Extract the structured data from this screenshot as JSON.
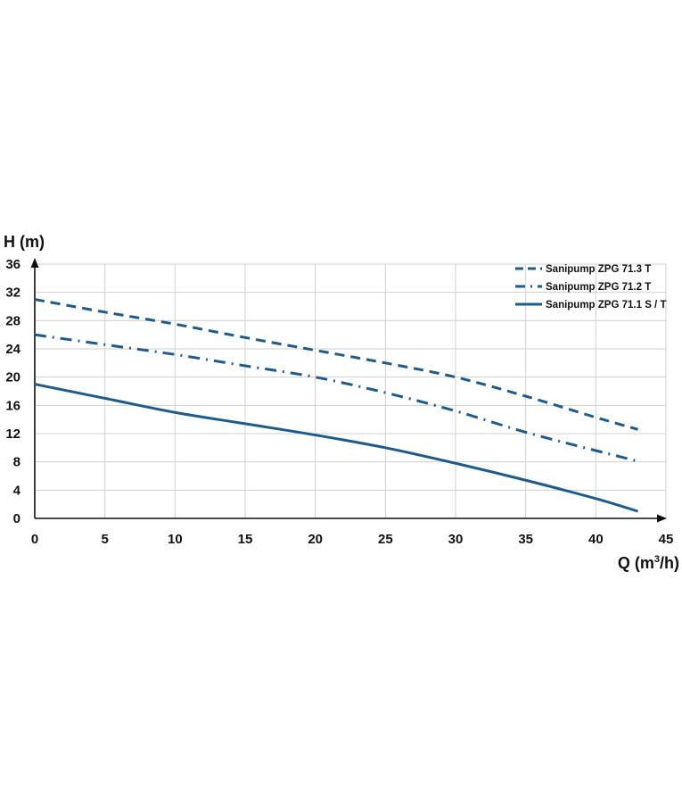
{
  "chart_data": {
    "type": "line",
    "title": "",
    "xlabel": "Q (m³/h)",
    "xlabel_main": "Q (m",
    "xlabel_sup": "3",
    "xlabel_tail": "/h)",
    "ylabel": "H (m)",
    "xlim": [
      0,
      45
    ],
    "ylim": [
      0,
      36
    ],
    "xticks": [
      0,
      5,
      10,
      15,
      20,
      25,
      30,
      35,
      40,
      45
    ],
    "yticks": [
      0,
      4,
      8,
      12,
      16,
      20,
      24,
      28,
      32,
      36
    ],
    "grid": true,
    "legend_position": "top-right",
    "series": [
      {
        "name": "Sanipump ZPG 71.3 T",
        "style": "dashed",
        "color": "#1d5b8e",
        "x": [
          0,
          5,
          10,
          15,
          20,
          25,
          30,
          35,
          40,
          43
        ],
        "y": [
          31,
          29.2,
          27.5,
          25.6,
          23.8,
          22,
          20,
          17.3,
          14.3,
          12.6
        ]
      },
      {
        "name": "Sanipump ZPG 71.2 T",
        "style": "dashdot",
        "color": "#1d5b8e",
        "x": [
          0,
          5,
          10,
          15,
          20,
          25,
          30,
          35,
          40,
          43
        ],
        "y": [
          26,
          24.6,
          23.2,
          21.6,
          20,
          17.8,
          15.2,
          12.2,
          9.6,
          8.1
        ]
      },
      {
        "name": "Sanipump ZPG 71.1 S / T",
        "style": "solid",
        "color": "#1d5b8e",
        "x": [
          0,
          5,
          10,
          15,
          20,
          25,
          30,
          35,
          40,
          43
        ],
        "y": [
          19,
          17,
          15,
          13.4,
          11.8,
          10,
          7.8,
          5.4,
          2.8,
          1
        ]
      }
    ]
  }
}
